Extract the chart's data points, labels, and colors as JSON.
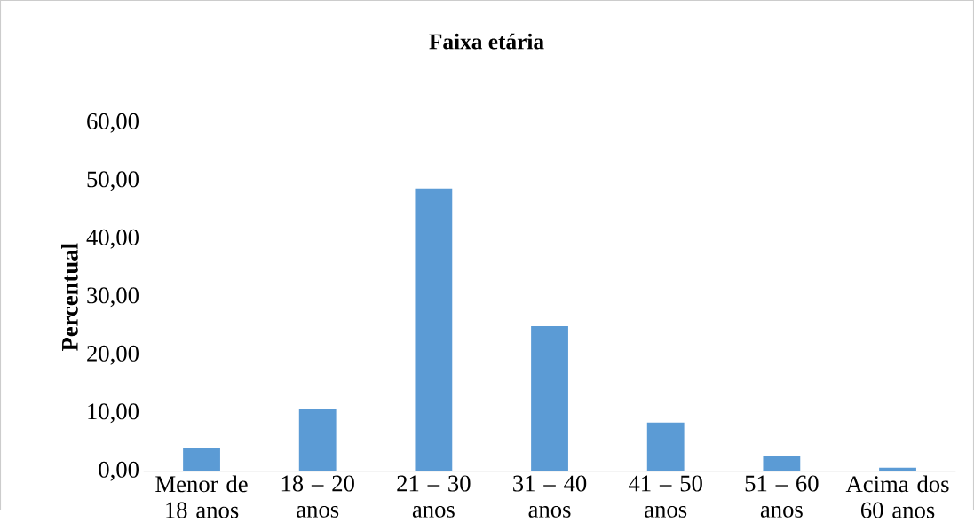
{
  "chart_data": {
    "type": "bar",
    "title": "Faixa etária",
    "ylabel": "Percentual",
    "categories": [
      "Menor de 18 anos",
      "18 – 20 anos",
      "21 – 30 anos",
      "31 – 40 anos",
      "41 – 50 anos",
      "51 – 60 anos",
      "Acima dos 60 anos"
    ],
    "values": [
      4.0,
      10.7,
      48.7,
      25.0,
      8.4,
      2.6,
      0.6
    ],
    "color": "#5b9bd5",
    "ylim": [
      0,
      60
    ],
    "yticks": [
      {
        "value": 0,
        "label": "0,00"
      },
      {
        "value": 10,
        "label": "10,00"
      },
      {
        "value": 20,
        "label": "20,00"
      },
      {
        "value": 30,
        "label": "30,00"
      },
      {
        "value": 40,
        "label": "40,00"
      },
      {
        "value": 50,
        "label": "50,00"
      },
      {
        "value": 60,
        "label": "60,00"
      }
    ],
    "grid": false
  }
}
